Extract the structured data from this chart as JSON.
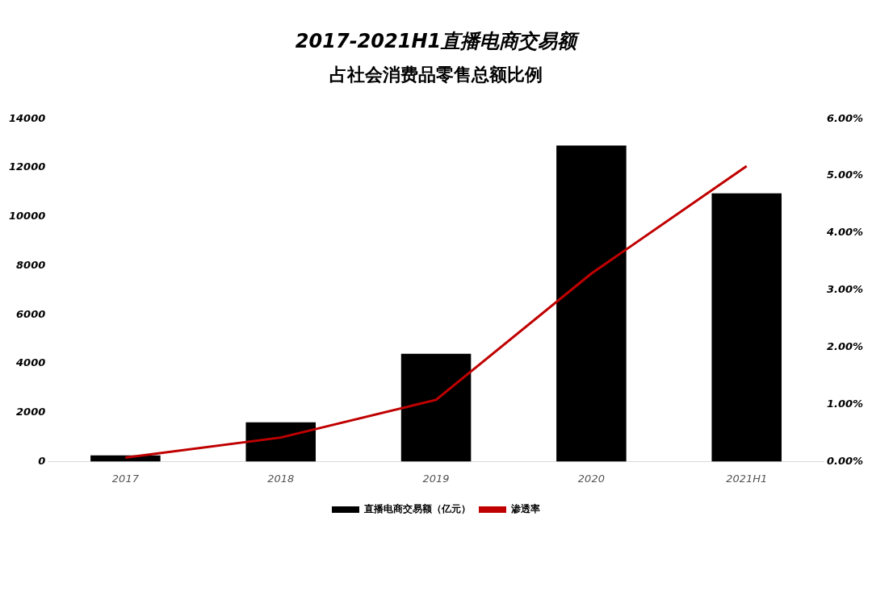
{
  "chart_data": {
    "type": "bar",
    "title": "2017-2021H1直播电商交易额",
    "subtitle": "占社会消费品零售总额比例",
    "categories": [
      "2017",
      "2018",
      "2019",
      "2020",
      "2021H1"
    ],
    "series": [
      {
        "name": "直播电商交易额（亿元）",
        "color": "#000000",
        "values": [
          250,
          1600,
          4400,
          12900,
          10950
        ]
      },
      {
        "name": "渗透率",
        "type": "line",
        "axis": "y2",
        "color": "#c00000",
        "values": [
          0.07,
          0.42,
          1.08,
          3.29,
          5.17
        ]
      }
    ],
    "ylim": [
      0,
      14000
    ],
    "yticks": [
      0,
      2000,
      4000,
      6000,
      8000,
      10000,
      12000,
      14000
    ],
    "y2lim": [
      0,
      6
    ],
    "y2ticks": [
      {
        "value": 0,
        "label": "0.00%"
      },
      {
        "value": 1,
        "label": "1.00%"
      },
      {
        "value": 2,
        "label": "2.00%"
      },
      {
        "value": 3,
        "label": "3.00%"
      },
      {
        "value": 4,
        "label": "4.00%"
      },
      {
        "value": 5,
        "label": "5.00%"
      },
      {
        "value": 6,
        "label": "6.00%"
      }
    ],
    "grid": false,
    "legend": "bottom",
    "marker": "none"
  }
}
